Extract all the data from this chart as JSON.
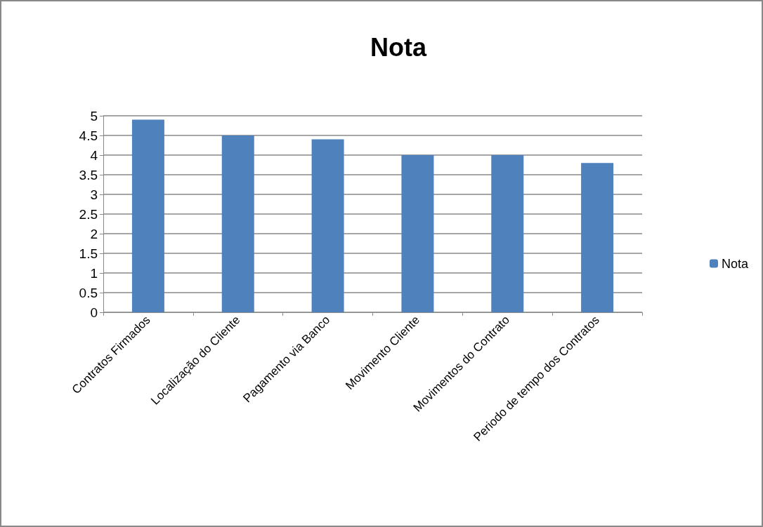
{
  "chart_data": {
    "type": "bar",
    "title": "Nota",
    "categories": [
      "Contratos Firmados",
      "Localização do Cliente",
      "Pagamento via Banco",
      "Movimento Cliente",
      "Movimentos do Contrato",
      "Periodo de tempo dos Contratos"
    ],
    "series": [
      {
        "name": "Nota",
        "color": "#4f81bd",
        "values": [
          4.9,
          4.5,
          4.4,
          4.0,
          4.0,
          3.8
        ]
      }
    ],
    "ylim": [
      0,
      5
    ],
    "yticks": [
      0,
      0.5,
      1,
      1.5,
      2,
      2.5,
      3,
      3.5,
      4,
      4.5,
      5
    ],
    "grid": "y",
    "legend": "right"
  }
}
